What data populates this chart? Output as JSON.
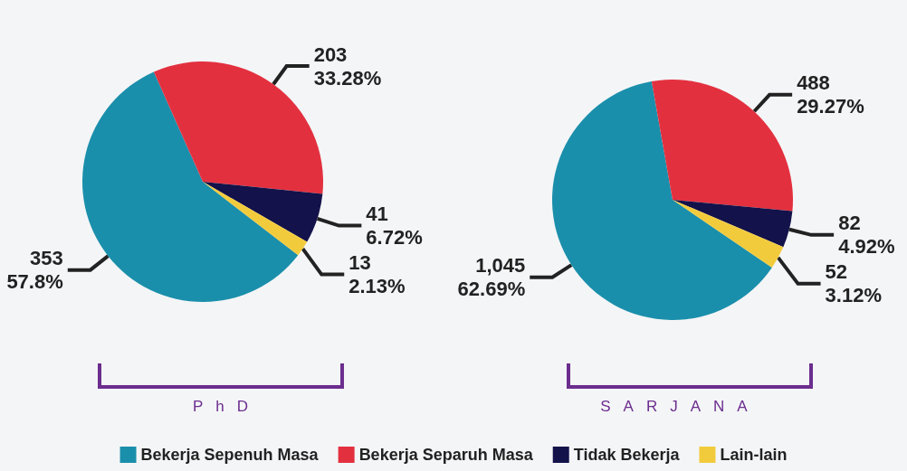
{
  "chart_data": {
    "type": "pie",
    "categories": [
      "Bekerja Sepenuh Masa",
      "Bekerja Separuh Masa",
      "Tidak Bekerja",
      "Lain-lain"
    ],
    "colors": [
      "#1a8fab",
      "#e3303f",
      "#13124a",
      "#f2cb3d"
    ],
    "legend": "bottom",
    "series": [
      {
        "name": "PhD",
        "values": [
          353,
          203,
          41,
          13
        ],
        "value_labels": [
          "353\n57.8%",
          "203\n33.28%",
          "41\n6.72%",
          "13\n2.13%"
        ]
      },
      {
        "name": "SARJANA",
        "values": [
          1045,
          488,
          82,
          52
        ],
        "value_labels": [
          "1,045\n62.69%",
          "488\n29.27%",
          "82\n4.92%",
          "52\n3.12%"
        ]
      }
    ]
  }
}
